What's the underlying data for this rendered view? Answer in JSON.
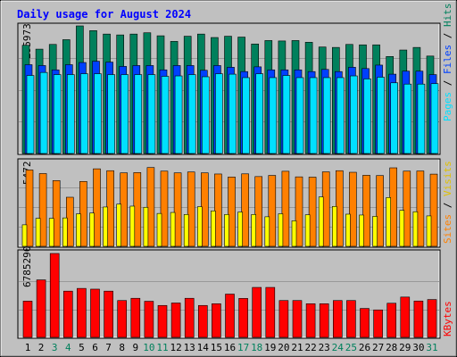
{
  "title": "Daily usage for August 2024",
  "colors": {
    "background": "#c0c0c0",
    "title": "#0000ff",
    "grid": "#999999",
    "hits": "#00805c",
    "files": "#0040ff",
    "pages": "#00e0ff",
    "visits": "#ffff00",
    "sites": "#ff8000",
    "kbytes": "#ff0000",
    "weekend": "#00805c",
    "weekday": "#000000"
  },
  "panels": {
    "top": {
      "ymax_label": "295973",
      "legend": [
        "Pages",
        "Files",
        "Hits"
      ]
    },
    "middle": {
      "ymax_label": "5472",
      "legend": [
        "Sites",
        "Visits"
      ]
    },
    "bottom": {
      "ymax_label": "6785290",
      "legend": [
        "KBytes"
      ]
    }
  },
  "chart_data": {
    "type": "bar",
    "title": "Daily usage for August 2024",
    "categories": [
      "1",
      "2",
      "3",
      "4",
      "5",
      "6",
      "7",
      "8",
      "9",
      "10",
      "11",
      "12",
      "13",
      "14",
      "15",
      "16",
      "17",
      "18",
      "19",
      "20",
      "21",
      "22",
      "23",
      "24",
      "25",
      "26",
      "27",
      "28",
      "29",
      "30",
      "31"
    ],
    "weekend_days": [
      "3",
      "4",
      "10",
      "11",
      "17",
      "18",
      "24",
      "25",
      "31"
    ],
    "panels": [
      {
        "name": "top",
        "ymax": 295973,
        "series": [
          {
            "name": "Hits",
            "values": [
              251000,
              242000,
              253000,
              264000,
              295973,
              285000,
              277000,
              275000,
              277000,
              280000,
              273000,
              260000,
              272000,
              277000,
              269000,
              272000,
              270000,
              254000,
              262000,
              261000,
              262000,
              258000,
              247000,
              246000,
              253000,
              252000,
              252000,
              225000,
              240000,
              246000,
              226000
            ]
          },
          {
            "name": "Files",
            "values": [
              206000,
              204000,
              194000,
              206000,
              211000,
              214000,
              212000,
              202000,
              204000,
              204000,
              194000,
              204000,
              204000,
              193000,
              204000,
              200000,
              190000,
              201000,
              194000,
              194000,
              194000,
              190000,
              195000,
              190000,
              200000,
              197000,
              205000,
              184000,
              191000,
              191000,
              183000
            ]
          },
          {
            "name": "Pages",
            "values": [
              181000,
              188000,
              183000,
              183000,
              185000,
              185000,
              183000,
              183000,
              183000,
              183000,
              179000,
              180000,
              183000,
              178000,
              185000,
              184000,
              176000,
              185000,
              176000,
              181000,
              176000,
              176000,
              176000,
              176000,
              180000,
              173000,
              177000,
              164000,
              161000,
              161000,
              162000
            ]
          }
        ]
      },
      {
        "name": "middle",
        "ymax": 5472,
        "series": [
          {
            "name": "Sites",
            "values": [
              5320,
              5070,
              4580,
              3420,
              4520,
              5400,
              5270,
              5120,
              5140,
              5490,
              5240,
              5120,
              5180,
              5120,
              5040,
              4830,
              5050,
              4860,
              4940,
              5230,
              4840,
              4820,
              5190,
              5270,
              5160,
              4950,
              4930,
              5470,
              5240,
              5250,
              5030
            ]
          },
          {
            "name": "Visits",
            "values": [
              1500,
              1950,
              1950,
              1980,
              2260,
              2320,
              2740,
              2940,
              2800,
              2720,
              2290,
              2360,
              2220,
              2760,
              2470,
              2220,
              2390,
              2220,
              2060,
              2270,
              1780,
              2200,
              3440,
              2780,
              2240,
              2180,
              2090,
              3400,
              2510,
              2410,
              2120
            ]
          }
        ]
      },
      {
        "name": "bottom",
        "ymax": 6785290,
        "series": [
          {
            "name": "KBytes",
            "values": [
              2930000,
              4650000,
              6785290,
              3740000,
              3960000,
              3900000,
              3740000,
              2980000,
              3160000,
              2920000,
              2580000,
              2780000,
              3160000,
              2580000,
              2720000,
              3500000,
              3150000,
              4040000,
              4040000,
              2980000,
              2980000,
              2720000,
              2720000,
              2980000,
              2980000,
              2340000,
              2220000,
              2760000,
              3260000,
              2940000,
              3060000
            ]
          }
        ]
      }
    ]
  }
}
